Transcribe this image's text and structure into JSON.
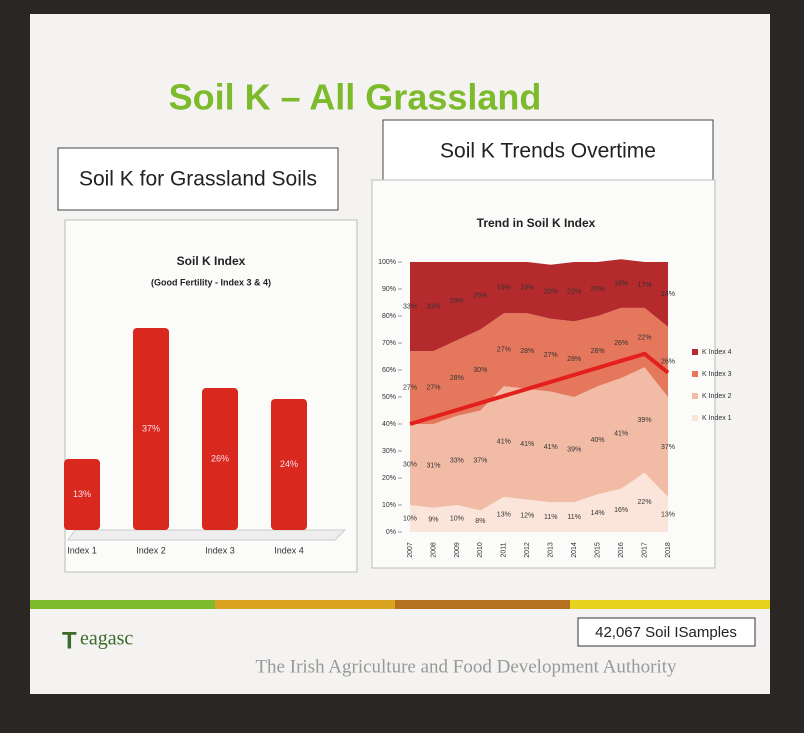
{
  "slide": {
    "title": "Soil K – All Grassland",
    "left_heading": "Soil K for Grassland Soils",
    "right_heading": "Soil K Trends Overtime",
    "logo": "eagasc",
    "samples": "42,067 Soil ISamples",
    "authority": "The Irish Agriculture and Food Development Authority"
  },
  "chart_data": [
    {
      "type": "bar",
      "title": "Soil K Index",
      "subtitle": "(Good Fertility - Index 3 & 4)",
      "color": "#d9281e",
      "categories": [
        "Index 1",
        "Index 2",
        "Index 3",
        "Index 4"
      ],
      "values": [
        13,
        37,
        26,
        24
      ],
      "value_labels": [
        "13%",
        "37%",
        "26%",
        "24%"
      ]
    },
    {
      "type": "stacked-area",
      "title": "Trend in Soil K Index",
      "legend": "right",
      "categories": [
        "2007",
        "2008",
        "2009",
        "2010",
        "2011",
        "2012",
        "2013",
        "2014",
        "2015",
        "2016",
        "2017",
        "2018"
      ],
      "ylim": [
        0,
        100
      ],
      "yticks": [
        {
          "value": 0,
          "label": "0%"
        },
        {
          "value": 10,
          "label": "10%"
        },
        {
          "value": 20,
          "label": "20%"
        },
        {
          "value": 30,
          "label": "30%"
        },
        {
          "value": 40,
          "label": "40%"
        },
        {
          "value": 50,
          "label": "50%"
        },
        {
          "value": 60,
          "label": "60%"
        },
        {
          "value": 70,
          "label": "70%"
        },
        {
          "value": 80,
          "label": "80%"
        },
        {
          "value": 90,
          "label": "90%"
        },
        {
          "value": 100,
          "label": "100%"
        }
      ],
      "series": [
        {
          "name": "K Index 1",
          "color": "#fbe5da",
          "values": [
            10,
            9,
            10,
            8,
            13,
            12,
            11,
            11,
            14,
            16,
            22,
            13
          ],
          "value_labels": [
            "10%",
            "9%",
            "10%",
            "8%",
            "13%",
            "12%",
            "11%",
            "11%",
            "14%",
            "16%",
            "22%",
            "13%"
          ]
        },
        {
          "name": "K Index 2",
          "color": "#f2bba6",
          "values": [
            30,
            31,
            33,
            37,
            41,
            41,
            41,
            39,
            40,
            41,
            39,
            37
          ],
          "value_labels": [
            "30%",
            "31%",
            "33%",
            "37%",
            "41%",
            "41%",
            "41%",
            "39%",
            "40%",
            "41%",
            "39%",
            "37%"
          ]
        },
        {
          "name": "K Index 3",
          "color": "#e5775c",
          "values": [
            27,
            27,
            28,
            30,
            27,
            28,
            27,
            28,
            26,
            26,
            22,
            26
          ],
          "value_labels": [
            "27%",
            "27%",
            "28%",
            "30%",
            "27%",
            "28%",
            "27%",
            "28%",
            "26%",
            "26%",
            "22%",
            "26%"
          ]
        },
        {
          "name": "K Index 4",
          "color": "#b52a2c",
          "values": [
            33,
            33,
            29,
            25,
            19,
            19,
            20,
            22,
            20,
            18,
            17,
            24
          ],
          "value_labels": [
            "33%",
            "33%",
            "29%",
            "25%",
            "19%",
            "19%",
            "20%",
            "22%",
            "20%",
            "18%",
            "17%",
            "24%"
          ]
        }
      ],
      "trend_line": {
        "color": "#e3201b",
        "x": [
          "2007",
          "2017",
          "2018"
        ],
        "values": [
          40,
          66,
          59
        ]
      }
    }
  ]
}
